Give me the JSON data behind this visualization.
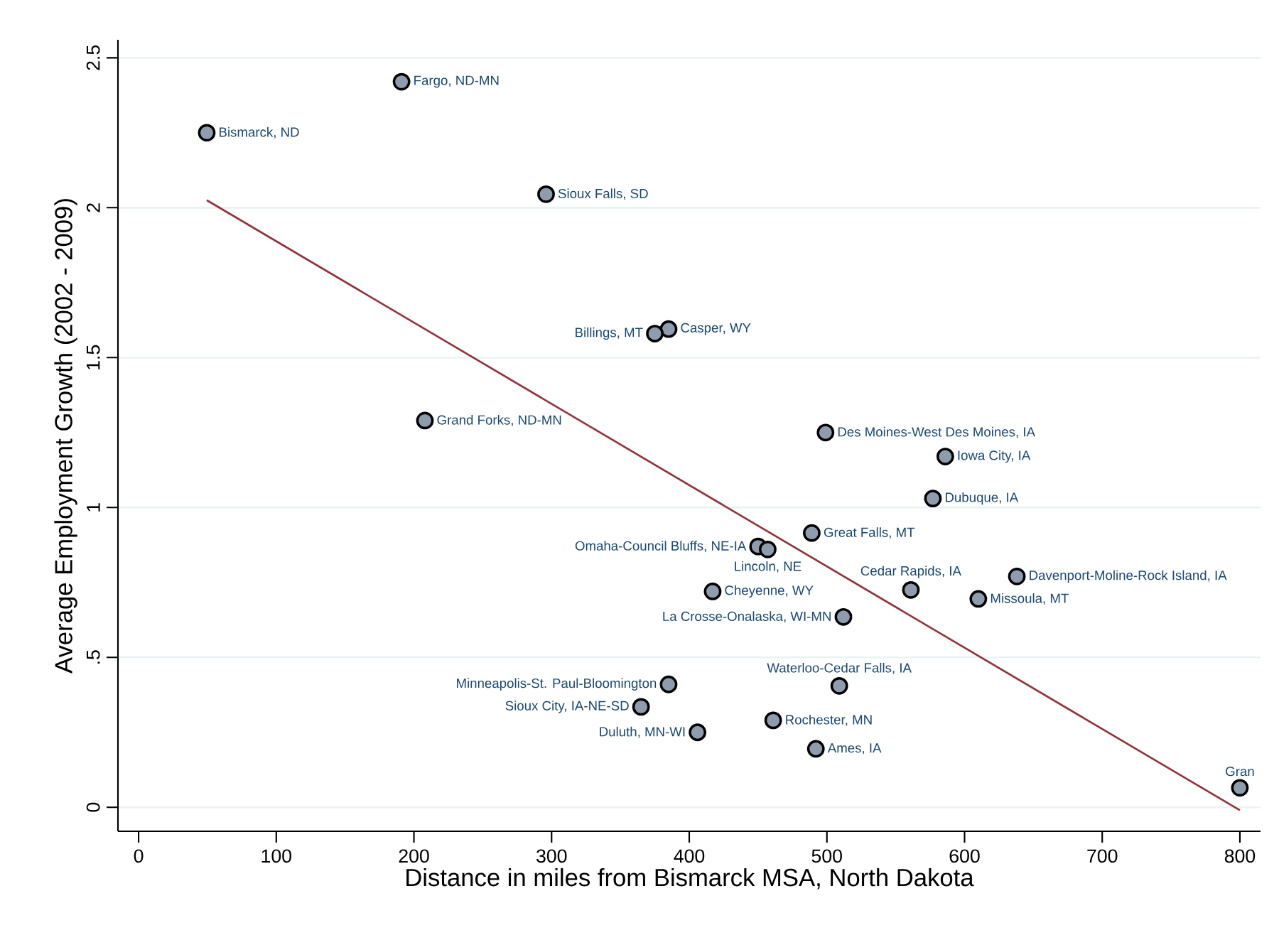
{
  "chart_data": {
    "type": "scatter",
    "xlabel": "Distance in miles from Bismarck MSA, North Dakota",
    "ylabel": "Average Employment Growth (2002 - 2009)",
    "xlim": [
      -15,
      815
    ],
    "ylim": [
      -0.08,
      2.56
    ],
    "xticks": [
      0,
      100,
      200,
      300,
      400,
      500,
      600,
      700,
      800
    ],
    "yticks": [
      0,
      {
        "value": 0.5,
        "label": ".5"
      },
      1,
      1.5,
      2,
      2.5
    ],
    "grid": "y",
    "marker": "circle",
    "series": [
      {
        "type": "scatter",
        "color": "#8e9cae",
        "x": [
          191,
          49.5,
          296,
          385,
          375,
          208,
          499,
          586,
          577,
          489,
          450,
          457,
          417,
          561,
          638,
          610,
          512,
          385,
          509,
          365,
          461,
          406,
          492,
          800
        ],
        "values": [
          2.42,
          2.25,
          2.045,
          1.595,
          1.58,
          1.29,
          1.25,
          1.17,
          1.03,
          0.915,
          0.87,
          0.86,
          0.72,
          0.725,
          0.77,
          0.695,
          0.635,
          0.41,
          0.405,
          0.335,
          0.29,
          0.25,
          0.195,
          0.065
        ],
        "value_labels": [
          "Fargo, ND-MN",
          "Bismarck, ND",
          "Sioux Falls, SD",
          "Casper, WY",
          "Billings, MT",
          "Grand Forks, ND-MN",
          "Des Moines-West Des Moines, IA",
          "Iowa City, IA",
          "Dubuque, IA",
          "Great Falls, MT",
          "Omaha-Council Bluffs, NE-IA",
          "Lincoln, NE",
          "Cheyenne, WY",
          "Cedar Rapids, IA",
          "Davenport-Moline-Rock Island, IA",
          "Missoula, MT",
          "La Crosse-Onalaska, WI-MN",
          "Minneapolis-St. Paul-Bloomington",
          "Waterloo-Cedar Falls, IA",
          "Sioux City, IA-NE-SD",
          "Rochester, MN",
          "Duluth, MN-WI",
          "Ames, IA",
          "Gran"
        ]
      },
      {
        "type": "line",
        "marker": "none",
        "color": "#90353b",
        "x": [
          49.5,
          800
        ],
        "values": [
          2.025,
          -0.01
        ]
      }
    ]
  }
}
